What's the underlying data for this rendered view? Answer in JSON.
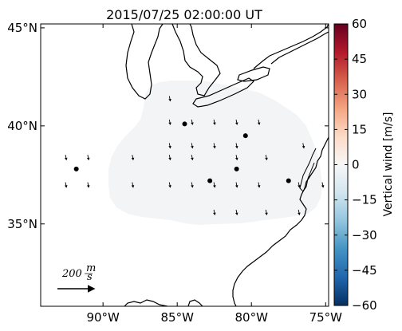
{
  "title": "2015/07/25 02:00:00 UT",
  "map": {
    "lat_range": [
      30.8,
      45.2
    ],
    "lon_range": [
      -94.2,
      -74.8
    ],
    "lat_ticks": [
      {
        "value": 45,
        "label": "45°N"
      },
      {
        "value": 40,
        "label": "40°N"
      },
      {
        "value": 35,
        "label": "35°N"
      }
    ],
    "lon_ticks": [
      {
        "value": -90,
        "label": "90°W"
      },
      {
        "value": -85,
        "label": "85°W"
      },
      {
        "value": -80,
        "label": "80°W"
      },
      {
        "value": -75,
        "label": "75°W"
      }
    ],
    "field_color": "#f2f4f6",
    "coast_color": "#000000"
  },
  "stations": [
    {
      "lon": -84.5,
      "lat": 40.1
    },
    {
      "lon": -80.4,
      "lat": 39.5
    },
    {
      "lon": -91.8,
      "lat": 37.8
    },
    {
      "lon": -82.8,
      "lat": 37.2
    },
    {
      "lon": -81.0,
      "lat": 37.8
    },
    {
      "lon": -77.5,
      "lat": 37.2
    }
  ],
  "wind_vectors": [
    {
      "lon": -85.5,
      "lat": 41.4
    },
    {
      "lon": -85.5,
      "lat": 40.2
    },
    {
      "lon": -84.0,
      "lat": 40.2
    },
    {
      "lon": -82.5,
      "lat": 40.2
    },
    {
      "lon": -81.0,
      "lat": 40.2
    },
    {
      "lon": -79.5,
      "lat": 40.2
    },
    {
      "lon": -85.5,
      "lat": 39.0
    },
    {
      "lon": -84.0,
      "lat": 39.0
    },
    {
      "lon": -82.5,
      "lat": 39.0
    },
    {
      "lon": -81.0,
      "lat": 39.0
    },
    {
      "lon": -76.5,
      "lat": 39.0
    },
    {
      "lon": -92.5,
      "lat": 38.4
    },
    {
      "lon": -91.0,
      "lat": 38.4
    },
    {
      "lon": -88.0,
      "lat": 38.4
    },
    {
      "lon": -85.5,
      "lat": 38.4
    },
    {
      "lon": -84.0,
      "lat": 38.4
    },
    {
      "lon": -81.0,
      "lat": 38.4
    },
    {
      "lon": -79.0,
      "lat": 38.4
    },
    {
      "lon": -92.5,
      "lat": 37.0
    },
    {
      "lon": -91.0,
      "lat": 37.0
    },
    {
      "lon": -88.0,
      "lat": 37.0
    },
    {
      "lon": -85.5,
      "lat": 37.0
    },
    {
      "lon": -84.0,
      "lat": 37.0
    },
    {
      "lon": -82.5,
      "lat": 37.0
    },
    {
      "lon": -81.0,
      "lat": 37.0
    },
    {
      "lon": -79.5,
      "lat": 37.0
    },
    {
      "lon": -76.8,
      "lat": 37.0
    },
    {
      "lon": -75.2,
      "lat": 37.0
    },
    {
      "lon": -82.5,
      "lat": 35.6
    },
    {
      "lon": -81.0,
      "lat": 35.6
    },
    {
      "lon": -79.0,
      "lat": 35.6
    },
    {
      "lon": -76.8,
      "lat": 35.6
    }
  ],
  "scale_arrow": {
    "label": "200",
    "unit_num": "m",
    "unit_den": "s"
  },
  "colorbar": {
    "label": "Vertical wind [m/s]",
    "range": [
      -60,
      60
    ],
    "ticks": [
      60,
      45,
      30,
      15,
      0,
      -15,
      -30,
      -45,
      -60
    ],
    "colors": [
      "#053061",
      "#2166ac",
      "#4393c3",
      "#92c5de",
      "#d1e5f0",
      "#f7f7f7",
      "#fddbc7",
      "#f4a582",
      "#d6604d",
      "#b2182b",
      "#67001f"
    ]
  }
}
